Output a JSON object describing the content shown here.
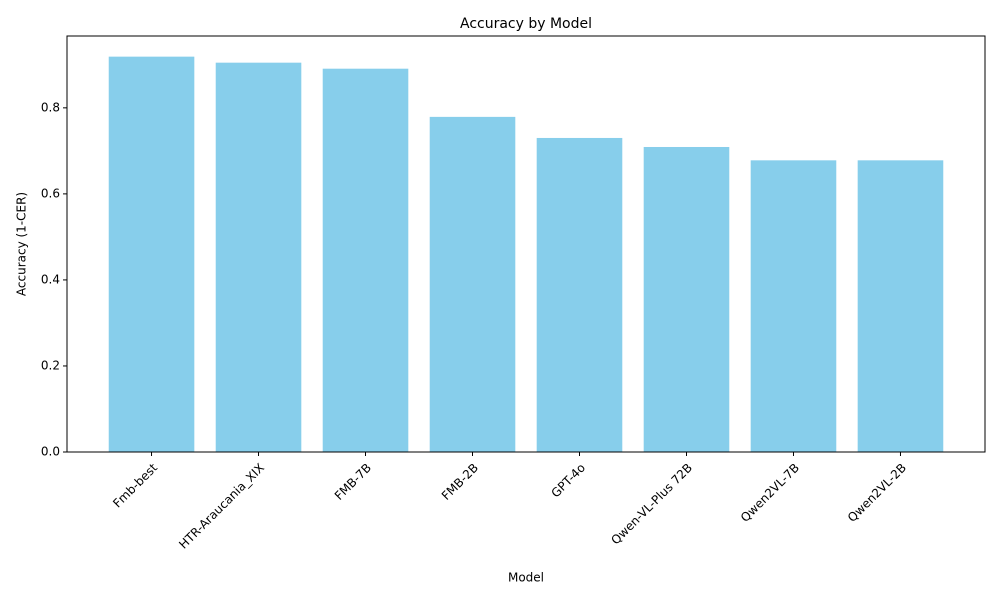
{
  "chart_data": {
    "type": "bar",
    "title": "Accuracy by Model",
    "x_label": "Model",
    "y_label": "Accuracy (1-CER)",
    "categories": [
      "Fmb-best",
      "HTR-Araucania_XIX",
      "FMB-7B",
      "FMB-2B",
      "GPT-4o",
      "Qwen-VL-Plus 72B",
      "Qwen2VL-7B",
      "Qwen2VL-2B"
    ],
    "values": [
      0.919,
      0.905,
      0.891,
      0.779,
      0.73,
      0.709,
      0.678,
      0.678
    ],
    "color": "#87ceeb",
    "ylim": [
      0,
      0.967
    ],
    "yticks": [
      {
        "value": 0,
        "label": "0.0"
      },
      0.2,
      0.4,
      0.6,
      0.8
    ],
    "grid": false
  }
}
